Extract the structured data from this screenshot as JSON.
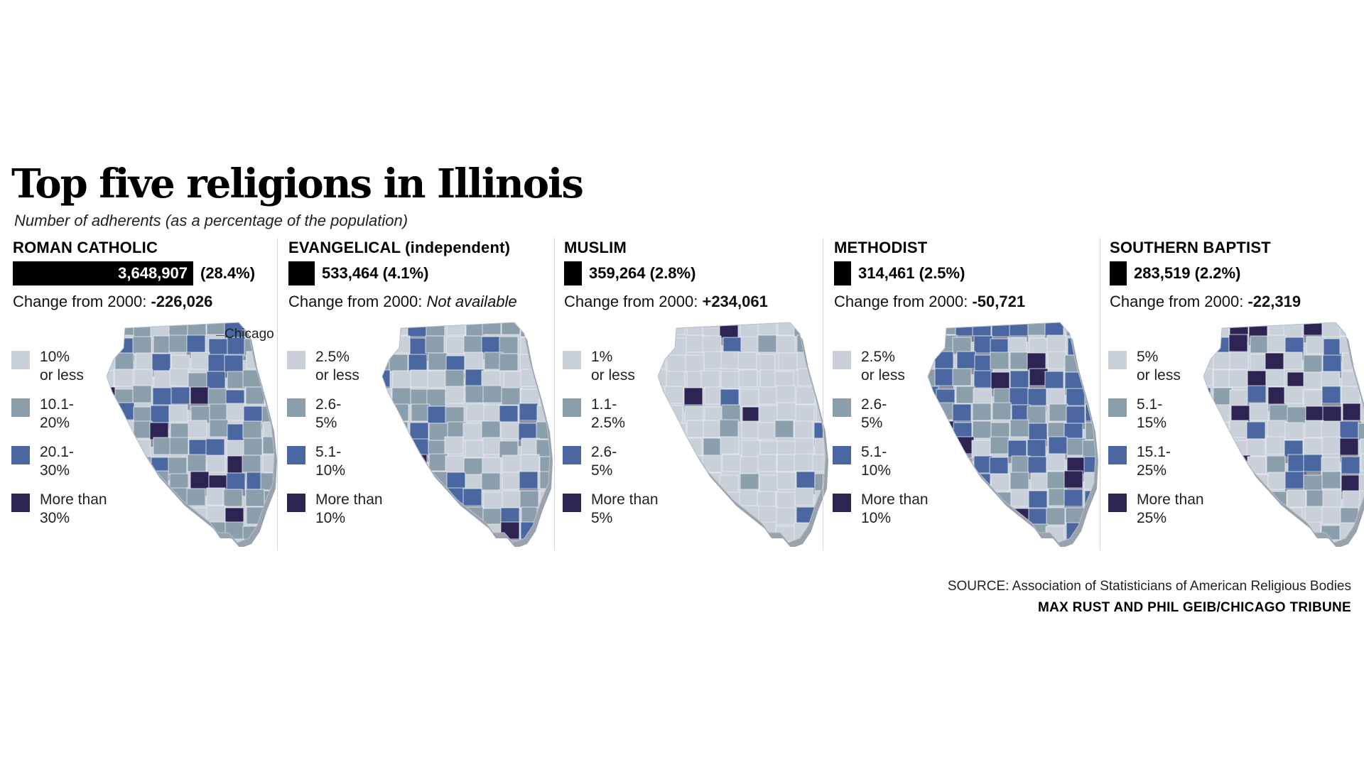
{
  "title": "Top five religions in Illinois",
  "subtitle": "Number of adherents (as a percentage of the population)",
  "colors": {
    "c1": "#c9d0d9",
    "c2": "#8a9eab",
    "c3": "#4a67a1",
    "c4": "#2e2453"
  },
  "panels": [
    {
      "name": "ROMAN CATHOLIC",
      "adherents": "3,648,907",
      "adherents_value": 3648907,
      "percent": "(28.4%)",
      "change_label": "Change from 2000: ",
      "change_value": "-226,026",
      "legend": [
        {
          "l1": "10%",
          "l2": "or less"
        },
        {
          "l1": "10.1-",
          "l2": "20%"
        },
        {
          "l1": "20.1-",
          "l2": "30%"
        },
        {
          "l1": "More than",
          "l2": "30%"
        }
      ],
      "callout": "Chicago"
    },
    {
      "name": "EVANGELICAL (independent)",
      "adherents": "533,464",
      "adherents_value": 533464,
      "percent": "(4.1%)",
      "change_label": "Change from 2000: ",
      "change_value": "Not available",
      "legend": [
        {
          "l1": "2.5%",
          "l2": "or less"
        },
        {
          "l1": "2.6-",
          "l2": "5%"
        },
        {
          "l1": "5.1-",
          "l2": "10%"
        },
        {
          "l1": "More than",
          "l2": "10%"
        }
      ]
    },
    {
      "name": "MUSLIM",
      "adherents": "359,264",
      "adherents_value": 359264,
      "percent": "(2.8%)",
      "change_label": "Change from 2000: ",
      "change_value": "+234,061",
      "legend": [
        {
          "l1": "1%",
          "l2": "or less"
        },
        {
          "l1": "1.1-",
          "l2": "2.5%"
        },
        {
          "l1": "2.6-",
          "l2": "5%"
        },
        {
          "l1": "More than",
          "l2": "5%"
        }
      ]
    },
    {
      "name": "METHODIST",
      "adherents": "314,461",
      "adherents_value": 314461,
      "percent": "(2.5%)",
      "change_label": "Change from 2000: ",
      "change_value": "-50,721",
      "legend": [
        {
          "l1": "2.5%",
          "l2": "or less"
        },
        {
          "l1": "2.6-",
          "l2": "5%"
        },
        {
          "l1": "5.1-",
          "l2": "10%"
        },
        {
          "l1": "More than",
          "l2": "10%"
        }
      ]
    },
    {
      "name": "SOUTHERN BAPTIST",
      "adherents": "283,519",
      "adherents_value": 283519,
      "percent": "(2.2%)",
      "change_label": "Change from 2000: ",
      "change_value": "-22,319",
      "legend": [
        {
          "l1": "5%",
          "l2": "or less"
        },
        {
          "l1": "5.1-",
          "l2": "15%"
        },
        {
          "l1": "15.1-",
          "l2": "25%"
        },
        {
          "l1": "More than",
          "l2": "25%"
        }
      ]
    }
  ],
  "source": "SOURCE: Association of Statisticians of American Religious Bodies",
  "credit": "MAX RUST AND PHIL GEIB/CHICAGO TRIBUNE"
}
